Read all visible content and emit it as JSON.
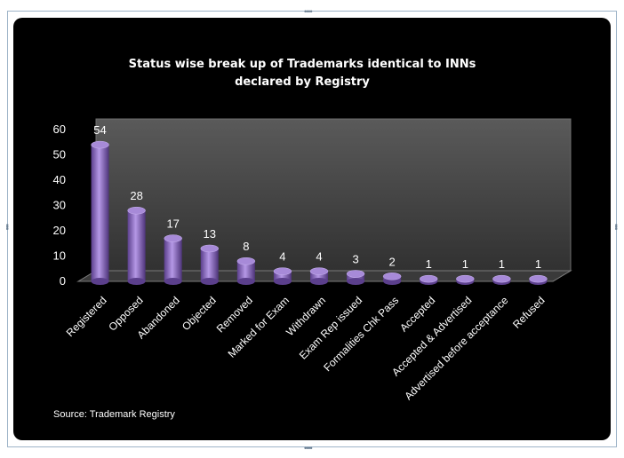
{
  "chart_data": {
    "type": "bar",
    "title": "Status wise break up of Trademarks identical to INNs declared by Registry",
    "title_lines": [
      "Status wise break up of Trademarks identical to INNs",
      "declared by Registry"
    ],
    "categories": [
      "Registered",
      "Opposed",
      "Abandoned",
      "Objected",
      "Removed",
      "Marked for Exam",
      "Withdrawn",
      "Exam Rep issued",
      "Formalities Chk Pass",
      "Accepted",
      "Accepted & Advertised",
      "Advertised before acceptance",
      "Refused"
    ],
    "values": [
      54,
      28,
      17,
      13,
      8,
      4,
      4,
      3,
      2,
      1,
      1,
      1,
      1
    ],
    "ylim": [
      0,
      60
    ],
    "yticks": [
      0,
      10,
      20,
      30,
      40,
      50,
      60
    ],
    "xlabel": "",
    "ylabel": "",
    "grid": false,
    "bar_color": "#8e6bc4",
    "background": "#000000",
    "source": "Source: Trademark Registry"
  }
}
